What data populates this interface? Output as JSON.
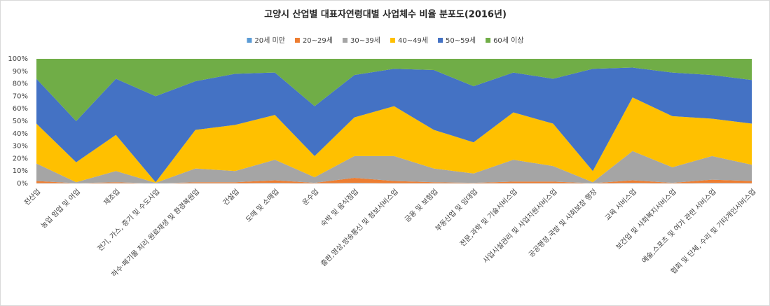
{
  "chart_data": {
    "type": "stacked_area_percent",
    "title": "고양시 산업별 대표자연령대별 사업체수 비율 분포도(2016년)",
    "categories": [
      "전산업",
      "농업 임업 및 어업",
      "제조업",
      "전기, 가스, 증기 및 수도사업",
      "하수·폐기물 처리 원료재생 및 환경복원업",
      "건설업",
      "도매 및 소매업",
      "운수업",
      "숙박 및 음식점업",
      "출판,영상,방송통신 및 정보서비스업",
      "금융 및 보험업",
      "부동산업 및 임대업",
      "전문,과학 및 기술서비스업",
      "사업시설관리 및 사업지원서비스업",
      "공공행정,국방 및 사회보장 행정",
      "교육 서비스업",
      "보건업 및 사회복지서비스업",
      "예술,스포츠 및 여가 관련 서비스업",
      "협회 및 단체, 수리 및 기타개인서비스업"
    ],
    "series": [
      {
        "name": "20세 미만",
        "color": "#5b9bd5",
        "values": [
          0.3,
          0,
          0.2,
          0,
          0.2,
          0.2,
          0.5,
          0.1,
          0.5,
          0.2,
          0.1,
          0.1,
          0.2,
          0.2,
          0,
          0.5,
          0.1,
          0.5,
          0.3
        ]
      },
      {
        "name": "20~29세",
        "color": "#ed7d31",
        "values": [
          1.7,
          0.2,
          0.8,
          0,
          0.8,
          0.8,
          2,
          0.4,
          4,
          1.8,
          0.9,
          0.4,
          1.3,
          1.3,
          0.2,
          2,
          0.4,
          2.5,
          1.7
        ]
      },
      {
        "name": "30~39세",
        "color": "#a5a5a5",
        "values": [
          14,
          0.8,
          9,
          0.5,
          11,
          9,
          16.5,
          4.5,
          17.5,
          20,
          11,
          7.5,
          17.5,
          12.5,
          0.8,
          23.5,
          12.5,
          19,
          13
        ]
      },
      {
        "name": "40~49세",
        "color": "#ffc000",
        "values": [
          32,
          16,
          29,
          0.5,
          31,
          37,
          36,
          17,
          31,
          40,
          31,
          25,
          38,
          34,
          9,
          43,
          41,
          30,
          33
        ]
      },
      {
        "name": "50~59세",
        "color": "#4472c4",
        "values": [
          36,
          33,
          45,
          69,
          39,
          41,
          34,
          40,
          34,
          30,
          48,
          45,
          32,
          36,
          82,
          24,
          35,
          35,
          35
        ]
      },
      {
        "name": "60세 이상",
        "color": "#70ad47",
        "values": [
          16,
          50,
          16,
          30,
          18,
          12,
          11,
          38,
          13,
          8,
          9,
          22,
          11,
          16,
          8,
          7,
          11,
          13,
          17
        ]
      }
    ],
    "ylim": [
      0,
      100
    ],
    "yticks": [
      {
        "value": 0,
        "label": "0%"
      },
      {
        "value": 10,
        "label": "10%"
      },
      {
        "value": 20,
        "label": "20%"
      },
      {
        "value": 30,
        "label": "30%"
      },
      {
        "value": 40,
        "label": "40%"
      },
      {
        "value": 50,
        "label": "50%"
      },
      {
        "value": 60,
        "label": "60%"
      },
      {
        "value": 70,
        "label": "70%"
      },
      {
        "value": 80,
        "label": "80%"
      },
      {
        "value": 90,
        "label": "90%"
      },
      {
        "value": 100,
        "label": "100%"
      }
    ],
    "legend": "top"
  }
}
